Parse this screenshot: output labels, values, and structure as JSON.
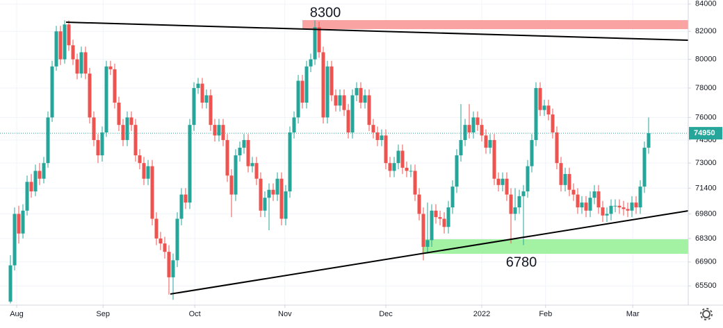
{
  "chart_data": {
    "type": "candlestick",
    "log": true,
    "grid": true,
    "up_color": "#26a69a",
    "down_color": "#ef5350",
    "ylim": [
      64400,
      84300
    ],
    "yticks": [
      84000,
      82000,
      80000,
      78000,
      76000,
      74500,
      73000,
      71400,
      69800,
      68300,
      66900,
      65500
    ],
    "xlim": [
      -2.5,
      162.5
    ],
    "xticks": [
      {
        "value": 1.5,
        "label": "Aug"
      },
      {
        "value": 22.2,
        "label": "Sep"
      },
      {
        "value": 44.2,
        "label": "Oct"
      },
      {
        "value": 65.8,
        "label": "Nov"
      },
      {
        "value": 90,
        "label": "Dec"
      },
      {
        "value": 113,
        "label": "2022"
      },
      {
        "value": 128.3,
        "label": "Feb"
      },
      {
        "value": 149.2,
        "label": "Mar"
      }
    ],
    "last_price": 74950,
    "annotations": [
      "8300",
      "6780"
    ],
    "ohlc": [
      [
        64600,
        67300,
        64500,
        66700
      ],
      [
        66700,
        70200,
        66400,
        69800
      ],
      [
        69800,
        70300,
        68000,
        68600
      ],
      [
        68600,
        70400,
        68300,
        70000
      ],
      [
        70000,
        72200,
        69700,
        71800
      ],
      [
        71800,
        72300,
        70800,
        71200
      ],
      [
        71200,
        72900,
        70900,
        72500
      ],
      [
        72500,
        73000,
        71600,
        72000
      ],
      [
        72000,
        73400,
        71700,
        73000
      ],
      [
        73000,
        76400,
        72700,
        76000
      ],
      [
        76000,
        79900,
        75700,
        79500
      ],
      [
        79500,
        82400,
        79200,
        82000
      ],
      [
        82000,
        82400,
        79600,
        80000
      ],
      [
        80000,
        82800,
        79700,
        82500
      ],
      [
        82500,
        82800,
        80600,
        81000
      ],
      [
        81000,
        81400,
        79600,
        80000
      ],
      [
        80000,
        80400,
        78600,
        79000
      ],
      [
        79000,
        80900,
        78700,
        80500
      ],
      [
        80500,
        80900,
        78600,
        79000
      ],
      [
        79000,
        79400,
        75600,
        76000
      ],
      [
        76000,
        76400,
        74100,
        74500
      ],
      [
        74500,
        74900,
        73000,
        73500
      ],
      [
        73500,
        75400,
        73100,
        75000
      ],
      [
        75000,
        79900,
        74700,
        79500
      ],
      [
        79500,
        79900,
        78900,
        79300
      ],
      [
        79300,
        79700,
        76600,
        77000
      ],
      [
        77000,
        77400,
        75100,
        75500
      ],
      [
        75500,
        75900,
        74100,
        74500
      ],
      [
        74500,
        76400,
        74100,
        76000
      ],
      [
        76000,
        76400,
        75100,
        75500
      ],
      [
        75500,
        75900,
        73100,
        73500
      ],
      [
        73500,
        73900,
        72600,
        73000
      ],
      [
        73000,
        73400,
        71600,
        72000
      ],
      [
        72000,
        73200,
        71600,
        72800
      ],
      [
        72800,
        73200,
        69100,
        69500
      ],
      [
        69500,
        69900,
        67900,
        68300
      ],
      [
        68300,
        68700,
        67600,
        68000
      ],
      [
        68000,
        68400,
        67100,
        67500
      ],
      [
        67500,
        67900,
        65000,
        66000
      ],
      [
        66000,
        67400,
        64700,
        67000
      ],
      [
        67000,
        69900,
        66600,
        69500
      ],
      [
        69500,
        71400,
        69100,
        71000
      ],
      [
        71000,
        71400,
        70100,
        70500
      ],
      [
        70500,
        75900,
        70100,
        75500
      ],
      [
        75500,
        78400,
        75100,
        78000
      ],
      [
        78000,
        78700,
        77600,
        78300
      ],
      [
        78300,
        78700,
        76600,
        77000
      ],
      [
        77000,
        77900,
        76600,
        77500
      ],
      [
        77500,
        77900,
        75100,
        75500
      ],
      [
        75500,
        75900,
        74400,
        74800
      ],
      [
        74800,
        75900,
        74400,
        75500
      ],
      [
        75500,
        75900,
        74100,
        74500
      ],
      [
        74500,
        74900,
        71800,
        72200
      ],
      [
        72200,
        72600,
        69600,
        71000
      ],
      [
        71000,
        73900,
        70600,
        73500
      ],
      [
        73500,
        74400,
        73100,
        74000
      ],
      [
        74000,
        74900,
        73600,
        74500
      ],
      [
        74500,
        74900,
        72400,
        72800
      ],
      [
        72800,
        73400,
        72400,
        73000
      ],
      [
        73000,
        73400,
        71600,
        72000
      ],
      [
        72000,
        72400,
        69600,
        70000
      ],
      [
        70000,
        71200,
        69600,
        70800
      ],
      [
        70800,
        71700,
        68800,
        71300
      ],
      [
        71300,
        71700,
        70600,
        71000
      ],
      [
        71000,
        72400,
        70600,
        72000
      ],
      [
        72000,
        72400,
        69100,
        69500
      ],
      [
        69500,
        71600,
        69100,
        71200
      ],
      [
        71200,
        75400,
        70800,
        75000
      ],
      [
        75000,
        76400,
        74600,
        76000
      ],
      [
        76000,
        78900,
        75600,
        78500
      ],
      [
        78500,
        78900,
        76600,
        77000
      ],
      [
        77000,
        79900,
        76600,
        79500
      ],
      [
        79500,
        80400,
        79100,
        80000
      ],
      [
        80000,
        82800,
        79600,
        82300
      ],
      [
        82300,
        82700,
        80100,
        80500
      ],
      [
        80500,
        80900,
        75600,
        76000
      ],
      [
        76000,
        79900,
        75600,
        79500
      ],
      [
        79500,
        79900,
        77100,
        77500
      ],
      [
        77500,
        77900,
        76400,
        76800
      ],
      [
        76800,
        77900,
        76400,
        77500
      ],
      [
        77500,
        77900,
        76100,
        76500
      ],
      [
        76500,
        76900,
        74600,
        75000
      ],
      [
        75000,
        77900,
        74600,
        77500
      ],
      [
        77500,
        78400,
        77100,
        78000
      ],
      [
        78000,
        78400,
        76600,
        77000
      ],
      [
        77000,
        77900,
        76600,
        77500
      ],
      [
        77500,
        77900,
        75100,
        75500
      ],
      [
        75500,
        75900,
        74600,
        75000
      ],
      [
        75000,
        75400,
        74100,
        74500
      ],
      [
        74500,
        75200,
        74100,
        74800
      ],
      [
        74800,
        75200,
        72600,
        73000
      ],
      [
        73000,
        73400,
        72100,
        72500
      ],
      [
        72500,
        73400,
        72100,
        73000
      ],
      [
        73000,
        74200,
        72600,
        73800
      ],
      [
        73800,
        74200,
        72300,
        72700
      ],
      [
        72700,
        73100,
        72100,
        72500
      ],
      [
        72500,
        72900,
        72100,
        72500
      ],
      [
        72500,
        72900,
        70600,
        71000
      ],
      [
        71000,
        71400,
        69400,
        69800
      ],
      [
        69800,
        70200,
        67000,
        67800
      ],
      [
        67800,
        70500,
        67400,
        68200
      ],
      [
        68200,
        70400,
        67800,
        70000
      ],
      [
        70000,
        70400,
        69200,
        69600
      ],
      [
        69600,
        70000,
        69100,
        69500
      ],
      [
        69500,
        69900,
        68600,
        69000
      ],
      [
        69000,
        70600,
        68600,
        70200
      ],
      [
        70200,
        71900,
        69800,
        71500
      ],
      [
        71500,
        73900,
        71100,
        73500
      ],
      [
        73500,
        76900,
        73100,
        74500
      ],
      [
        74500,
        75900,
        74100,
        75500
      ],
      [
        75500,
        76900,
        74600,
        75000
      ],
      [
        75000,
        76400,
        74600,
        76000
      ],
      [
        76000,
        76400,
        75100,
        75500
      ],
      [
        75500,
        75900,
        74400,
        74800
      ],
      [
        74800,
        75200,
        73600,
        74000
      ],
      [
        74000,
        74900,
        73600,
        74500
      ],
      [
        74500,
        74900,
        71600,
        72000
      ],
      [
        72000,
        72400,
        71200,
        71600
      ],
      [
        71600,
        72400,
        71200,
        72000
      ],
      [
        72000,
        72400,
        70600,
        71000
      ],
      [
        71000,
        71400,
        68000,
        69800
      ],
      [
        69800,
        71400,
        69400,
        70200
      ],
      [
        70200,
        71300,
        69800,
        70900
      ],
      [
        70900,
        71600,
        67900,
        71200
      ],
      [
        71200,
        73200,
        70800,
        72800
      ],
      [
        72800,
        74900,
        72400,
        74500
      ],
      [
        74500,
        78400,
        74100,
        78000
      ],
      [
        78000,
        78400,
        76100,
        76500
      ],
      [
        76500,
        77200,
        76100,
        76800
      ],
      [
        76800,
        77200,
        75800,
        76200
      ],
      [
        76200,
        76600,
        74600,
        75000
      ],
      [
        75000,
        75400,
        72600,
        73000
      ],
      [
        73000,
        73400,
        71200,
        71600
      ],
      [
        71600,
        72700,
        71200,
        72300
      ],
      [
        72300,
        72700,
        70900,
        71300
      ],
      [
        71300,
        71700,
        70600,
        71000
      ],
      [
        71000,
        71400,
        69800,
        70200
      ],
      [
        70200,
        70900,
        69800,
        70500
      ],
      [
        70500,
        70900,
        69600,
        70000
      ],
      [
        70000,
        71200,
        69600,
        70800
      ],
      [
        70800,
        71600,
        70400,
        71200
      ],
      [
        71200,
        71600,
        69800,
        70200
      ],
      [
        70200,
        70600,
        69300,
        69700
      ],
      [
        69700,
        70200,
        69300,
        69800
      ],
      [
        69800,
        70700,
        69400,
        70300
      ],
      [
        70300,
        70700,
        69900,
        70300
      ],
      [
        70300,
        70700,
        69800,
        70200
      ],
      [
        70200,
        70600,
        69700,
        70100
      ],
      [
        70100,
        70500,
        69600,
        70000
      ],
      [
        70000,
        70900,
        69600,
        70500
      ],
      [
        70500,
        70900,
        69800,
        70200
      ],
      [
        70200,
        71900,
        69800,
        71500
      ],
      [
        71500,
        74400,
        71100,
        74000
      ],
      [
        74000,
        76000,
        73600,
        74950
      ]
    ]
  }
}
